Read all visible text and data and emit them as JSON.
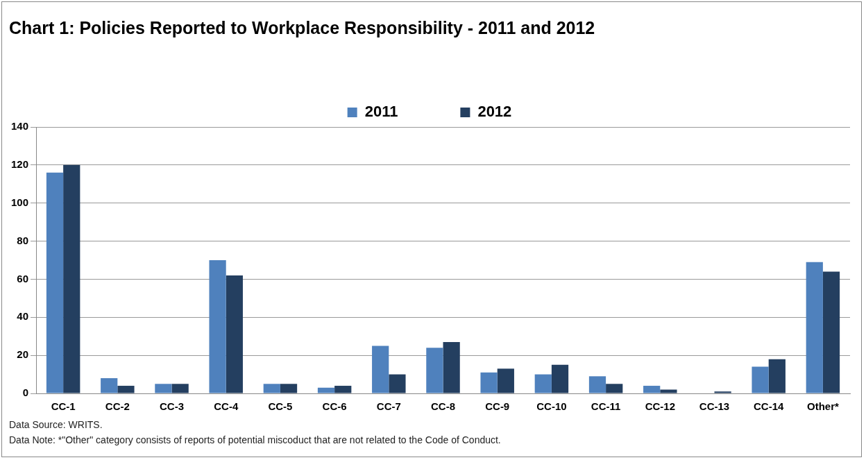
{
  "chart_data": {
    "type": "bar",
    "title": "Chart 1: Policies Reported to Workplace Responsibility - 2011 and 2012",
    "categories": [
      "CC-1",
      "CC-2",
      "CC-3",
      "CC-4",
      "CC-5",
      "CC-6",
      "CC-7",
      "CC-8",
      "CC-9",
      "CC-10",
      "CC-11",
      "CC-12",
      "CC-13",
      "CC-14",
      "Other*"
    ],
    "series": [
      {
        "name": "2011",
        "color": "#4f81bd",
        "values": [
          116,
          8,
          5,
          70,
          5,
          3,
          25,
          24,
          11,
          10,
          9,
          4,
          0,
          14,
          69
        ]
      },
      {
        "name": "2012",
        "color": "#243f60",
        "values": [
          120,
          4,
          5,
          62,
          5,
          4,
          10,
          27,
          13,
          15,
          5,
          2,
          1,
          18,
          64
        ]
      }
    ],
    "ylim": [
      0,
      140
    ],
    "yticks": [
      0,
      20,
      40,
      60,
      80,
      100,
      120,
      140
    ],
    "grid": "y",
    "legend": "top",
    "annotations": [
      "Data Source: WRITS.",
      "Data Note: *\"Other\" category consists of reports of potential miscoduct that are not related to the Code of Conduct."
    ]
  }
}
